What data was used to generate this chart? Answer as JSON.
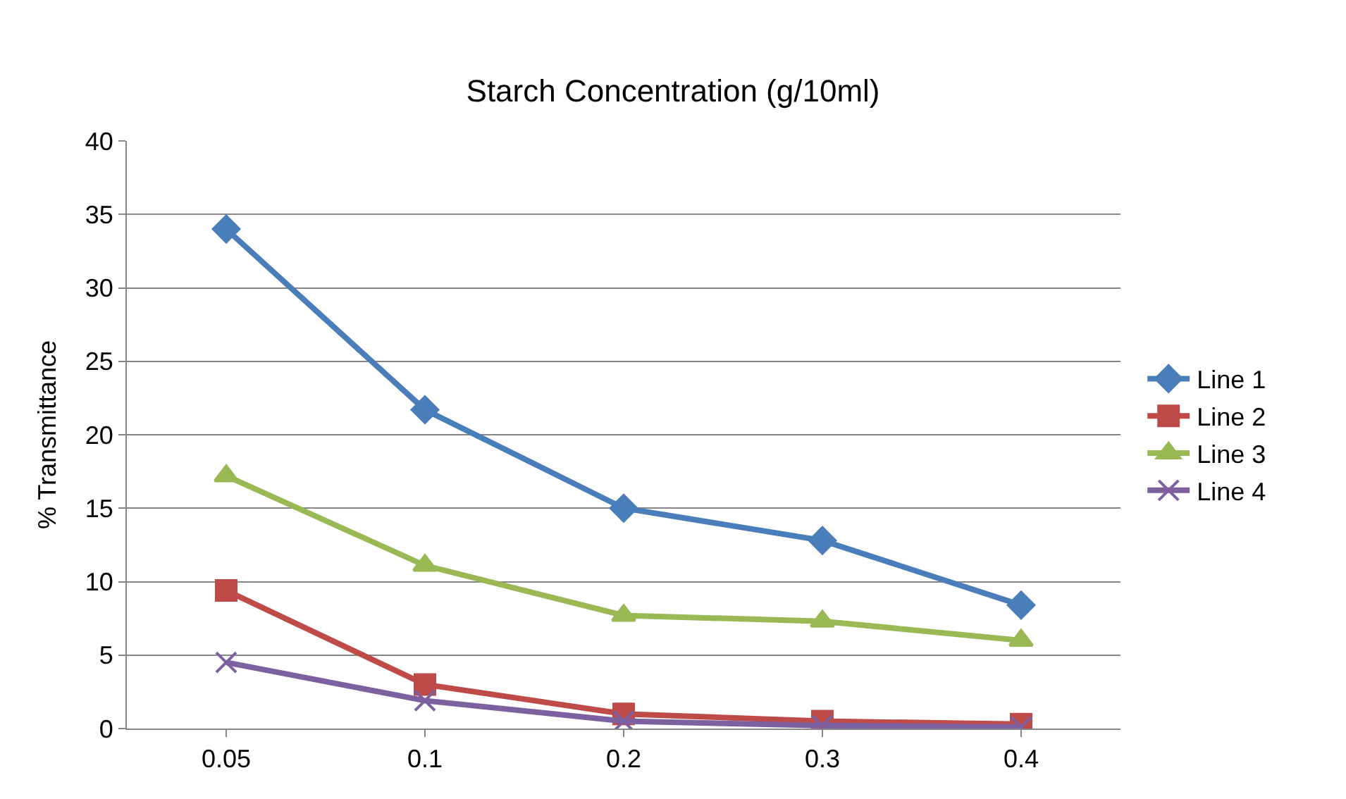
{
  "chart_data": {
    "type": "line",
    "title": "Starch Concentration (g/10ml)",
    "ylabel": "% Transmittance",
    "categories": [
      "0.05",
      "0.1",
      "0.2",
      "0.3",
      "0.4"
    ],
    "series": [
      {
        "name": "Line 1",
        "color": "#4a7ebb",
        "marker": "diamond",
        "values": [
          34.0,
          21.7,
          15.0,
          12.8,
          8.4
        ]
      },
      {
        "name": "Line 2",
        "color": "#be4b48",
        "marker": "square",
        "values": [
          9.4,
          3.0,
          1.0,
          0.5,
          0.3
        ]
      },
      {
        "name": "Line 3",
        "color": "#98b954",
        "marker": "triangle",
        "values": [
          17.2,
          11.1,
          7.7,
          7.3,
          6.0
        ]
      },
      {
        "name": "Line 4",
        "color": "#7d60a0",
        "marker": "cross",
        "values": [
          4.5,
          1.9,
          0.5,
          0.2,
          0.1
        ]
      }
    ],
    "ylim": [
      0,
      40
    ],
    "yticks": [
      0,
      5,
      10,
      15,
      20,
      25,
      30,
      35,
      40
    ],
    "grid": "y",
    "legend": "right"
  }
}
